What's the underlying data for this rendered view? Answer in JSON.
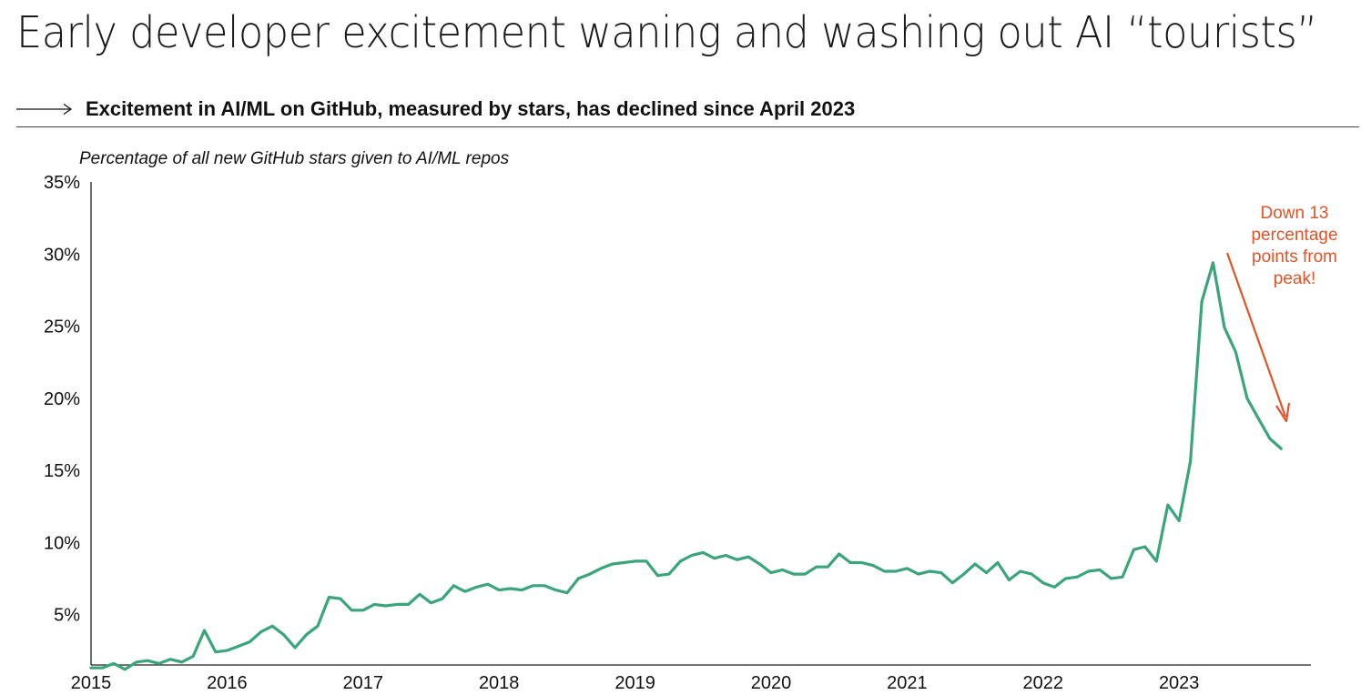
{
  "header": {
    "title": "Early developer excitement waning and washing out AI “tourists”",
    "subtitle": "Excitement in AI/ML on GitHub, measured by stars, has declined since April 2023"
  },
  "colors": {
    "line": "#3aa57a",
    "annotation": "#e0542a",
    "text": "#111111",
    "axis": "#222222"
  },
  "chart_data": {
    "type": "line",
    "title": "Excitement in AI/ML on GitHub, measured by stars, has declined since April 2023",
    "ylabel": "Percentage of all new GitHub stars given to AI/ML repos",
    "xlabel": "",
    "ylim": [
      1.5,
      35
    ],
    "y_ticks": [
      5,
      10,
      15,
      20,
      25,
      30,
      35
    ],
    "y_tick_labels": [
      "5%",
      "10%",
      "15%",
      "20%",
      "25%",
      "30%",
      "35%"
    ],
    "x_tick_labels": [
      "2015",
      "2016",
      "2017",
      "2018",
      "2019",
      "2020",
      "2021",
      "2022",
      "2023"
    ],
    "grid": false,
    "legend": "none",
    "x_start": "2015-01",
    "series": [
      {
        "values": [
          1.3,
          1.3,
          1.6,
          1.2,
          1.7,
          1.8,
          1.6,
          1.9,
          1.7,
          2.1,
          3.9,
          2.4,
          2.5,
          2.8,
          3.1,
          3.8,
          4.2,
          3.6,
          2.7,
          3.6,
          4.2,
          6.2,
          6.1,
          5.3,
          5.3,
          5.7,
          5.6,
          5.7,
          5.7,
          6.4,
          5.8,
          6.1,
          7.0,
          6.6,
          6.9,
          7.1,
          6.7,
          6.8,
          6.7,
          7.0,
          7.0,
          6.7,
          6.5,
          7.5,
          7.8,
          8.2,
          8.5,
          8.6,
          8.7,
          8.7,
          7.7,
          7.8,
          8.7,
          9.1,
          9.3,
          8.9,
          9.1,
          8.8,
          9.0,
          8.5,
          7.9,
          8.1,
          7.8,
          7.8,
          8.3,
          8.3,
          9.2,
          8.6,
          8.6,
          8.4,
          8.0,
          8.0,
          8.2,
          7.8,
          8.0,
          7.9,
          7.2,
          7.8,
          8.5,
          7.9,
          8.6,
          7.4,
          8.0,
          7.8,
          7.2,
          6.9,
          7.5,
          7.6,
          8.0,
          8.1,
          7.5,
          7.6,
          9.5,
          9.7,
          8.7,
          12.6,
          11.5,
          15.6,
          26.7,
          29.4,
          24.9,
          23.2,
          20.0,
          18.6,
          17.2,
          16.5
        ]
      }
    ],
    "annotation": {
      "text_lines": [
        "Down 13",
        "percentage",
        "points from",
        "peak!"
      ]
    }
  }
}
